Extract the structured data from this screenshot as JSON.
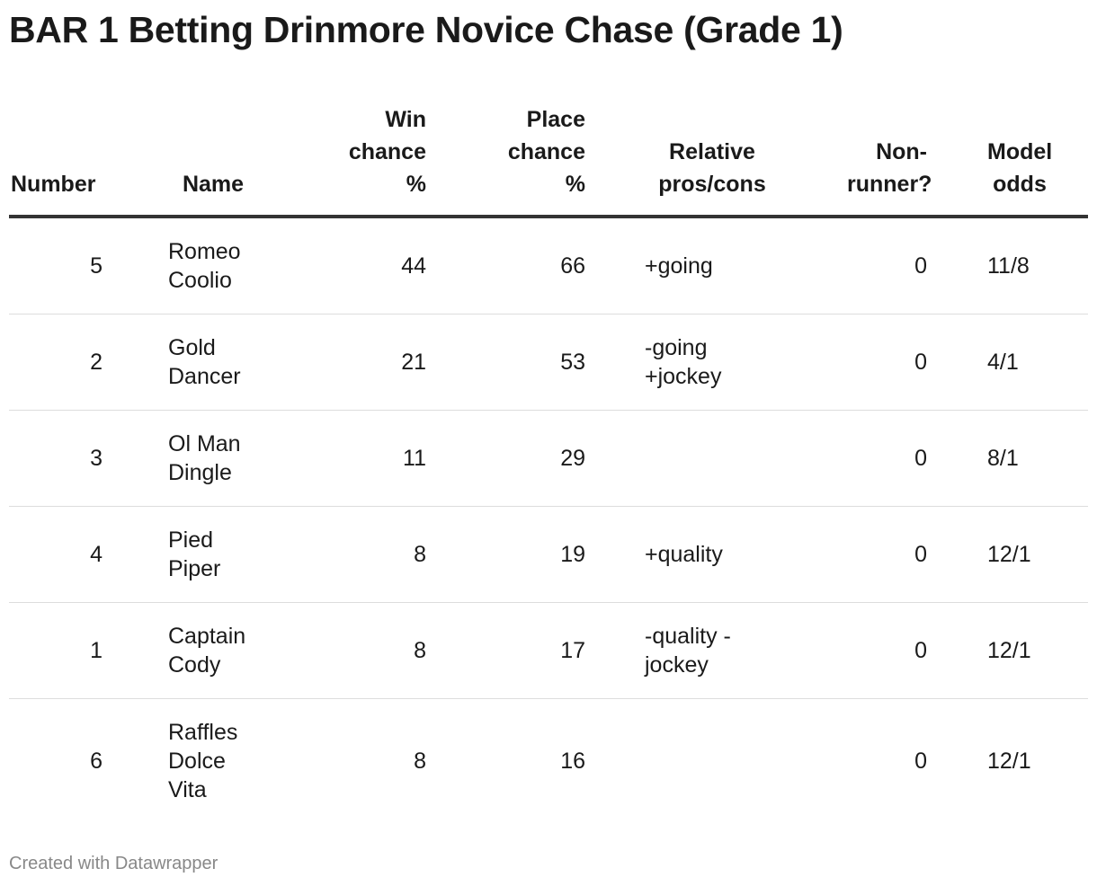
{
  "title": "BAR 1 Betting Drinmore Novice Chase (Grade 1)",
  "table": {
    "columns": [
      "Number",
      "Name",
      "Win chance %",
      "Place chance %",
      "Relative pros/cons",
      "Non-runner?",
      "Model odds"
    ],
    "rows": [
      [
        5,
        "Romeo Coolio",
        44,
        66,
        "+going",
        0,
        "11/8"
      ],
      [
        2,
        "Gold Dancer",
        21,
        53,
        "-going +jockey",
        0,
        "4/1"
      ],
      [
        3,
        "Ol Man Dingle",
        11,
        29,
        null,
        0,
        "8/1"
      ],
      [
        4,
        "Pied Piper",
        8,
        19,
        "+quality",
        0,
        "12/1"
      ],
      [
        1,
        "Captain Cody",
        8,
        17,
        "-quality -jockey",
        0,
        "12/1"
      ],
      [
        6,
        "Raffles Dolce Vita",
        8,
        16,
        null,
        0,
        "12/1"
      ]
    ]
  },
  "footer": "Created with Datawrapper"
}
